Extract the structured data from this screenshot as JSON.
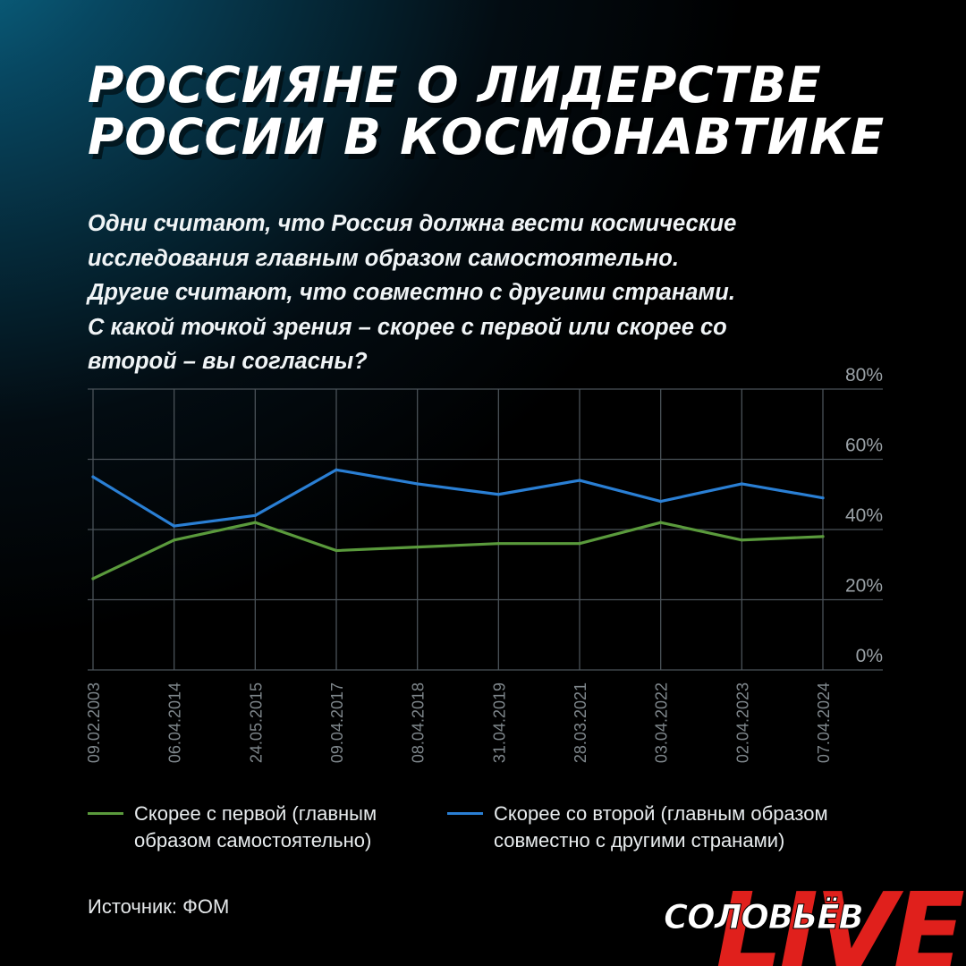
{
  "title_lines": [
    "Россияне о лидерстве",
    "России в космонавтике"
  ],
  "question_lines": [
    "Одни считают, что Россия должна вести космические",
    "исследования главным образом самостоятельно.",
    "Другие считают, что совместно с другими странами.",
    "С какой точкой зрения – скорее с первой или скорее со",
    "второй – вы согласны?"
  ],
  "chart_data": {
    "type": "line",
    "categories": [
      "09.02.2003",
      "06.04.2014",
      "24.05.2015",
      "09.04.2017",
      "08.04.2018",
      "31.04.2019",
      "28.03.2021",
      "03.04.2022",
      "02.04.2023",
      "07.04.2024"
    ],
    "series": [
      {
        "name": "Скорее с первой (главным образом самостоятельно)",
        "color": "#5a9a3c",
        "values": [
          26,
          37,
          42,
          34,
          35,
          36,
          36,
          42,
          37,
          38
        ]
      },
      {
        "name": "Скорее со второй (главным образом совместно с другими странами)",
        "color": "#2a7fd4",
        "values": [
          55,
          41,
          44,
          57,
          53,
          50,
          54,
          48,
          53,
          49
        ]
      }
    ],
    "y_ticks": [
      "80%",
      "60%",
      "40%",
      "20%",
      "0%"
    ],
    "ylim": [
      0,
      80
    ],
    "grid": true,
    "legend_position": "bottom"
  },
  "legend": [
    {
      "lines": [
        "Скорее с первой (главным",
        "образом самостоятельно)"
      ],
      "color": "#5a9a3c"
    },
    {
      "lines": [
        "Скорее со второй (главным образом",
        "совместно с другими странами)"
      ],
      "color": "#2a7fd4"
    }
  ],
  "source": "Источник: ФОМ",
  "logo": {
    "main": "СОЛОВЬЁВ",
    "overlay": "LIVE",
    "overlay_color": "#e0201c"
  }
}
